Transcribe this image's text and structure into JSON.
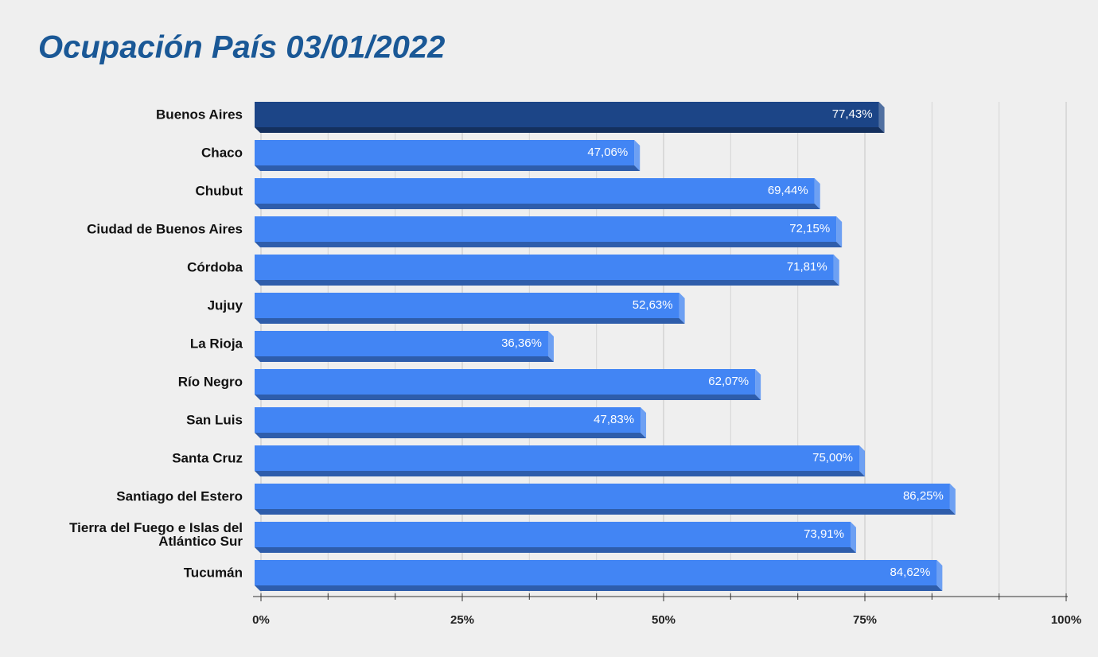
{
  "chart_data": {
    "type": "bar3d_horizontal",
    "title": "Ocupación País 03/01/2022",
    "categories": [
      "Buenos Aires",
      "Chaco",
      "Chubut",
      "Ciudad de Buenos Aires",
      "Córdoba",
      "Jujuy",
      "La Rioja",
      "Río Negro",
      "San Luis",
      "Santa Cruz",
      "Santiago del Estero",
      "Tierra del Fuego e Islas del Atlántico Sur",
      "Tucumán"
    ],
    "values": [
      77.43,
      47.06,
      69.44,
      72.15,
      71.81,
      52.63,
      36.36,
      62.07,
      47.83,
      75.0,
      86.25,
      73.91,
      84.62
    ],
    "value_labels": [
      "77,43%",
      "47,06%",
      "69,44%",
      "72,15%",
      "71,81%",
      "52,63%",
      "36,36%",
      "62,07%",
      "47,83%",
      "75,00%",
      "86,25%",
      "73,91%",
      "84,62%"
    ],
    "colors": [
      "#1c4587",
      "#4285f4",
      "#4285f4",
      "#4285f4",
      "#4285f4",
      "#4285f4",
      "#4285f4",
      "#4285f4",
      "#4285f4",
      "#4285f4",
      "#4285f4",
      "#4285f4",
      "#4285f4"
    ],
    "xlim": [
      0,
      100
    ],
    "xticks": [
      {
        "value": 0,
        "label": "0%"
      },
      {
        "value": 25,
        "label": "25%"
      },
      {
        "value": 50,
        "label": "50%"
      },
      {
        "value": 75,
        "label": "75%"
      },
      {
        "value": 100,
        "label": "100%"
      }
    ],
    "minor_xticks": [
      8.33,
      16.67,
      33.33,
      41.67,
      58.33,
      66.67,
      83.33,
      91.67
    ],
    "grid": true
  }
}
